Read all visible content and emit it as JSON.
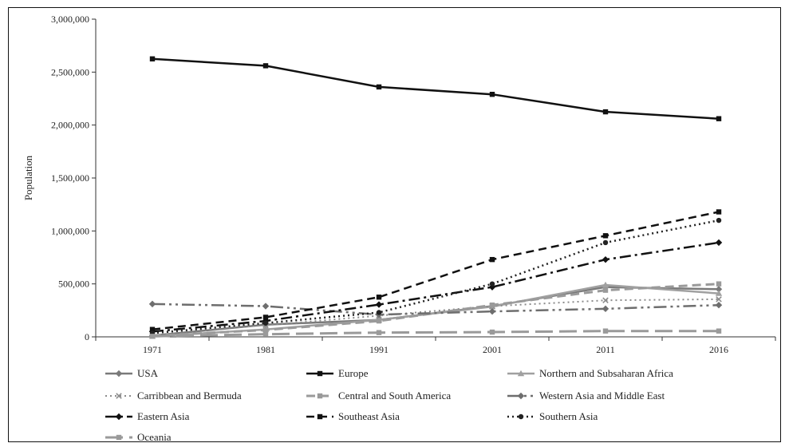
{
  "chart_data": {
    "type": "line",
    "title": "",
    "xlabel": "",
    "ylabel": "Population",
    "categories": [
      "1971",
      "1981",
      "1991",
      "2001",
      "2011",
      "2016"
    ],
    "ylim": [
      0,
      3000000
    ],
    "yticks": [
      "0",
      "500,000",
      "1,000,000",
      "1,500,000",
      "2,000,000",
      "2,500,000",
      "3,000,000"
    ],
    "grid": false,
    "legend_position": "bottom",
    "series": [
      {
        "name": "USA",
        "values": [
          12000,
          115000,
          160000,
          290000,
          470000,
          450000
        ],
        "color": "#7a7a7a",
        "dash": "",
        "width": 2.5,
        "marker": "diamond"
      },
      {
        "name": "Europe",
        "values": [
          2625000,
          2560000,
          2360000,
          2290000,
          2125000,
          2060000
        ],
        "color": "#111111",
        "dash": "",
        "width": 2.5,
        "marker": "square"
      },
      {
        "name": "Northern and Subsaharan Africa",
        "values": [
          5000,
          70000,
          160000,
          285000,
          490000,
          410000
        ],
        "color": "#a0a0a0",
        "dash": "",
        "width": 2.5,
        "marker": "triangle"
      },
      {
        "name": "Carribbean and Bermuda",
        "values": [
          35000,
          110000,
          200000,
          290000,
          345000,
          355000
        ],
        "color": "#8c8c8c",
        "dash": "2,4",
        "width": 2,
        "marker": "x"
      },
      {
        "name": "Central and South America",
        "values": [
          10000,
          65000,
          150000,
          300000,
          440000,
          500000
        ],
        "color": "#9a9a9a",
        "dash": "11,6",
        "width": 3,
        "marker": "square"
      },
      {
        "name": "Western Asia and Middle East",
        "values": [
          310000,
          290000,
          210000,
          240000,
          265000,
          300000
        ],
        "color": "#6e6e6e",
        "dash": "16,5,3,5,3,5",
        "width": 2.5,
        "marker": "diamond"
      },
      {
        "name": "Eastern Asia",
        "values": [
          50000,
          150000,
          305000,
          470000,
          730000,
          890000
        ],
        "color": "#111111",
        "dash": "14,5,3,5",
        "width": 2.5,
        "marker": "diamond"
      },
      {
        "name": "Southeast Asia",
        "values": [
          70000,
          185000,
          375000,
          730000,
          955000,
          1180000
        ],
        "color": "#111111",
        "dash": "10,6",
        "width": 2.5,
        "marker": "square"
      },
      {
        "name": "Southern Asia",
        "values": [
          35000,
          130000,
          230000,
          500000,
          890000,
          1100000
        ],
        "color": "#222222",
        "dash": "2,4",
        "width": 2.5,
        "marker": "circle"
      },
      {
        "name": "Oceania",
        "values": [
          5000,
          25000,
          40000,
          45000,
          55000,
          55000
        ],
        "color": "#9a9a9a",
        "dash": "22,8",
        "width": 3,
        "marker": "square"
      }
    ]
  }
}
